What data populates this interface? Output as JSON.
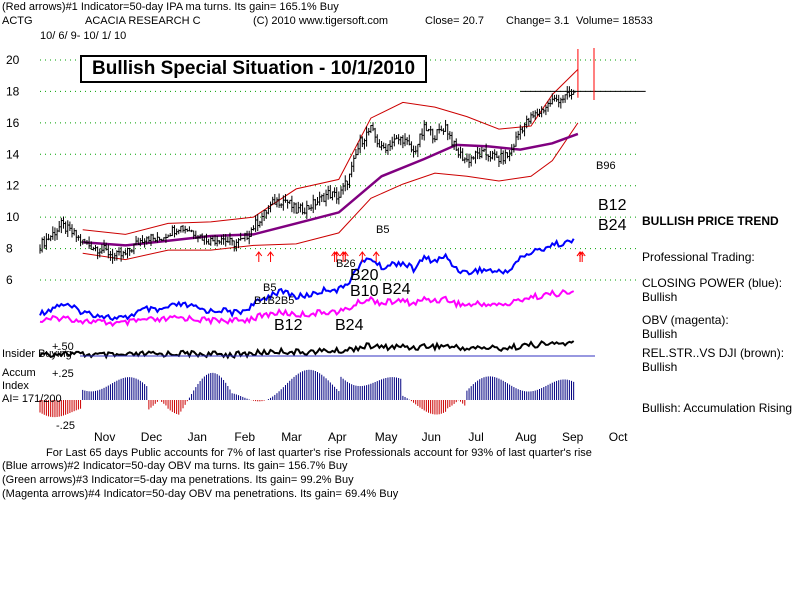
{
  "header": {
    "line1": "(Red arrows)#1 Indicator=50-day IPA ma turns. Its gain= 165.1% Buy",
    "ticker": "ACTG",
    "company": "ACACIA RESEARCH C",
    "copyright": "(C) 2010 www.tigersoft.com",
    "close": "Close=  20.7",
    "change": "Change= 3.1",
    "volume": "Volume= 18533",
    "dates": "10/ 6/ 9- 10/ 1/ 10"
  },
  "title_box": "Bullish Special Situation - 10/1/2010",
  "side_labels": {
    "bullish_price_trend": "BULLISH PRICE TREND",
    "professional_trading": "Professional Trading:",
    "closing_power": "CLOSING POWER (blue):",
    "closing_power_value": "Bullish",
    "obv": "OBV (magenta):",
    "obv_value": "Bullish",
    "relstr": "REL.STR..VS DJI (brown):",
    "relstr_value": "Bullish",
    "accum": "Bullish: Accumulation Rising"
  },
  "insider_label": "Insider Buying",
  "accum_label": {
    "line1": "Accum",
    "line2": "Index",
    "ai": "AI= 171/200"
  },
  "accum_ticks": [
    "+.50",
    "+.25",
    "-.25"
  ],
  "footer": {
    "line1": "For Last 65 days Public accounts for  7% of last quarter's rise  Professionals account for  93% of last quarter's rise",
    "line2": "(Blue arrows)#2 Indicator=50-day OBV ma turns. Its gain= 156.7% Buy",
    "line3": "(Green arrows)#3 Indicator=5-day ma penetrations. Its gain= 99.2% Buy",
    "line4": "(Magenta arrows)#4 Indicator=50-day OBV ma penetrations. Its gain= 69.4% Buy"
  },
  "colors": {
    "price": "#000000",
    "ma50": "#800080",
    "bands": "#cc0000",
    "closing_power": "#0000ff",
    "obv": "#ff00ff",
    "rel_str": "#000000",
    "accum_pos": "#000080",
    "accum_neg": "#cc0000",
    "grid": "#00a000",
    "signals": "#ff0000"
  },
  "chart_data": {
    "type": "line",
    "title": "Bullish Special Situation - 10/1/2010",
    "x_months": [
      "Nov",
      "Dec",
      "Jan",
      "Feb",
      "Mar",
      "Apr",
      "May",
      "Jun",
      "Jul",
      "Aug",
      "Sep",
      "Oct"
    ],
    "y_ticks": [
      6,
      8,
      10,
      12,
      14,
      16,
      18,
      20
    ],
    "ylim": [
      6,
      20
    ],
    "xlim_weeks": [
      0,
      52
    ],
    "price_weekly": [
      {
        "w": 0,
        "c": 8.2
      },
      {
        "w": 1,
        "c": 8.8
      },
      {
        "w": 2,
        "c": 9.5
      },
      {
        "w": 3,
        "c": 9.0
      },
      {
        "w": 4,
        "c": 8.4
      },
      {
        "w": 5,
        "c": 8.1
      },
      {
        "w": 6,
        "c": 7.9
      },
      {
        "w": 7,
        "c": 7.5
      },
      {
        "w": 8,
        "c": 7.6
      },
      {
        "w": 9,
        "c": 8.3
      },
      {
        "w": 10,
        "c": 8.8
      },
      {
        "w": 11,
        "c": 8.5
      },
      {
        "w": 12,
        "c": 9.0
      },
      {
        "w": 13,
        "c": 9.4
      },
      {
        "w": 14,
        "c": 9.2
      },
      {
        "w": 15,
        "c": 8.8
      },
      {
        "w": 16,
        "c": 8.5
      },
      {
        "w": 17,
        "c": 8.7
      },
      {
        "w": 18,
        "c": 8.3
      },
      {
        "w": 19,
        "c": 8.5
      },
      {
        "w": 20,
        "c": 9.4
      },
      {
        "w": 21,
        "c": 10.2
      },
      {
        "w": 22,
        "c": 11.0
      },
      {
        "w": 23,
        "c": 11.1
      },
      {
        "w": 24,
        "c": 10.4
      },
      {
        "w": 25,
        "c": 10.6
      },
      {
        "w": 26,
        "c": 11.0
      },
      {
        "w": 27,
        "c": 11.5
      },
      {
        "w": 28,
        "c": 11.3
      },
      {
        "w": 29,
        "c": 12.6
      },
      {
        "w": 30,
        "c": 14.8
      },
      {
        "w": 31,
        "c": 15.6
      },
      {
        "w": 32,
        "c": 14.3
      },
      {
        "w": 33,
        "c": 14.8
      },
      {
        "w": 34,
        "c": 15.0
      },
      {
        "w": 35,
        "c": 14.1
      },
      {
        "w": 36,
        "c": 15.6
      },
      {
        "w": 37,
        "c": 15.2
      },
      {
        "w": 38,
        "c": 15.8
      },
      {
        "w": 39,
        "c": 14.2
      },
      {
        "w": 40,
        "c": 13.6
      },
      {
        "w": 41,
        "c": 14.0
      },
      {
        "w": 42,
        "c": 14.0
      },
      {
        "w": 43,
        "c": 13.7
      },
      {
        "w": 44,
        "c": 14.0
      },
      {
        "w": 45,
        "c": 15.6
      },
      {
        "w": 46,
        "c": 16.3
      },
      {
        "w": 47,
        "c": 16.8
      },
      {
        "w": 48,
        "c": 17.4
      },
      {
        "w": 49,
        "c": 17.6
      },
      {
        "w": 50,
        "c": 17.8
      },
      {
        "w": 50.4,
        "c": 20.7
      }
    ],
    "ma50": [
      {
        "w": 4,
        "c": 8.4
      },
      {
        "w": 8,
        "c": 8.2
      },
      {
        "w": 12,
        "c": 8.5
      },
      {
        "w": 16,
        "c": 8.8
      },
      {
        "w": 20,
        "c": 8.9
      },
      {
        "w": 24,
        "c": 9.6
      },
      {
        "w": 28,
        "c": 10.3
      },
      {
        "w": 32,
        "c": 12.6
      },
      {
        "w": 36,
        "c": 13.7
      },
      {
        "w": 39,
        "c": 14.6
      },
      {
        "w": 42,
        "c": 14.5
      },
      {
        "w": 45,
        "c": 14.3
      },
      {
        "w": 48,
        "c": 14.7
      },
      {
        "w": 50.4,
        "c": 15.3
      }
    ],
    "upper_band": [
      {
        "w": 4,
        "c": 9.2
      },
      {
        "w": 8,
        "c": 8.9
      },
      {
        "w": 12,
        "c": 9.6
      },
      {
        "w": 16,
        "c": 9.7
      },
      {
        "w": 20,
        "c": 10.0
      },
      {
        "w": 24,
        "c": 11.8
      },
      {
        "w": 28,
        "c": 12.4
      },
      {
        "w": 31,
        "c": 16.3
      },
      {
        "w": 34,
        "c": 17.3
      },
      {
        "w": 37,
        "c": 17.0
      },
      {
        "w": 40,
        "c": 16.4
      },
      {
        "w": 43,
        "c": 15.6
      },
      {
        "w": 46,
        "c": 15.8
      },
      {
        "w": 48,
        "c": 17.8
      },
      {
        "w": 50.4,
        "c": 19.4
      }
    ],
    "lower_band": [
      {
        "w": 4,
        "c": 7.7
      },
      {
        "w": 8,
        "c": 7.3
      },
      {
        "w": 12,
        "c": 7.9
      },
      {
        "w": 16,
        "c": 7.9
      },
      {
        "w": 20,
        "c": 8.2
      },
      {
        "w": 24,
        "c": 8.3
      },
      {
        "w": 28,
        "c": 9.0
      },
      {
        "w": 31,
        "c": 11.2
      },
      {
        "w": 34,
        "c": 12.1
      },
      {
        "w": 37,
        "c": 12.8
      },
      {
        "w": 40,
        "c": 12.6
      },
      {
        "w": 43,
        "c": 12.3
      },
      {
        "w": 46,
        "c": 12.6
      },
      {
        "w": 48,
        "c": 13.6
      },
      {
        "w": 50.4,
        "c": 16.0
      }
    ],
    "resistance_line": {
      "value": 18.0,
      "from_week": 45,
      "to_week": 53
    },
    "signals": [
      {
        "label": "B5",
        "week": 30.2
      },
      {
        "label": "B5",
        "week": 20.5
      },
      {
        "label": "B12",
        "week": 50.6
      },
      {
        "label": "B24",
        "week": 50.6
      },
      {
        "label": "B26",
        "week": 27.6
      },
      {
        "label": "B12",
        "week": 21.6
      },
      {
        "label": "B24",
        "week": 27.8
      },
      {
        "label": "B20",
        "week": 28.6
      },
      {
        "label": "B10",
        "week": 28.4
      },
      {
        "label": "B24",
        "week": 31.5
      },
      {
        "label": "B96",
        "week": 50.8
      }
    ]
  },
  "signal_labels": {
    "b5_main": "B5",
    "b12_right": "B12",
    "b24_right": "B24",
    "b96_right": "B96",
    "b5_mid": "B5",
    "b12_b26_b5": "B1B2B5",
    "b12_low": "B12",
    "b24_low": "B24",
    "b26_top": "B26",
    "b20": "B20",
    "b10": "B10",
    "b24_mid": "B24"
  }
}
